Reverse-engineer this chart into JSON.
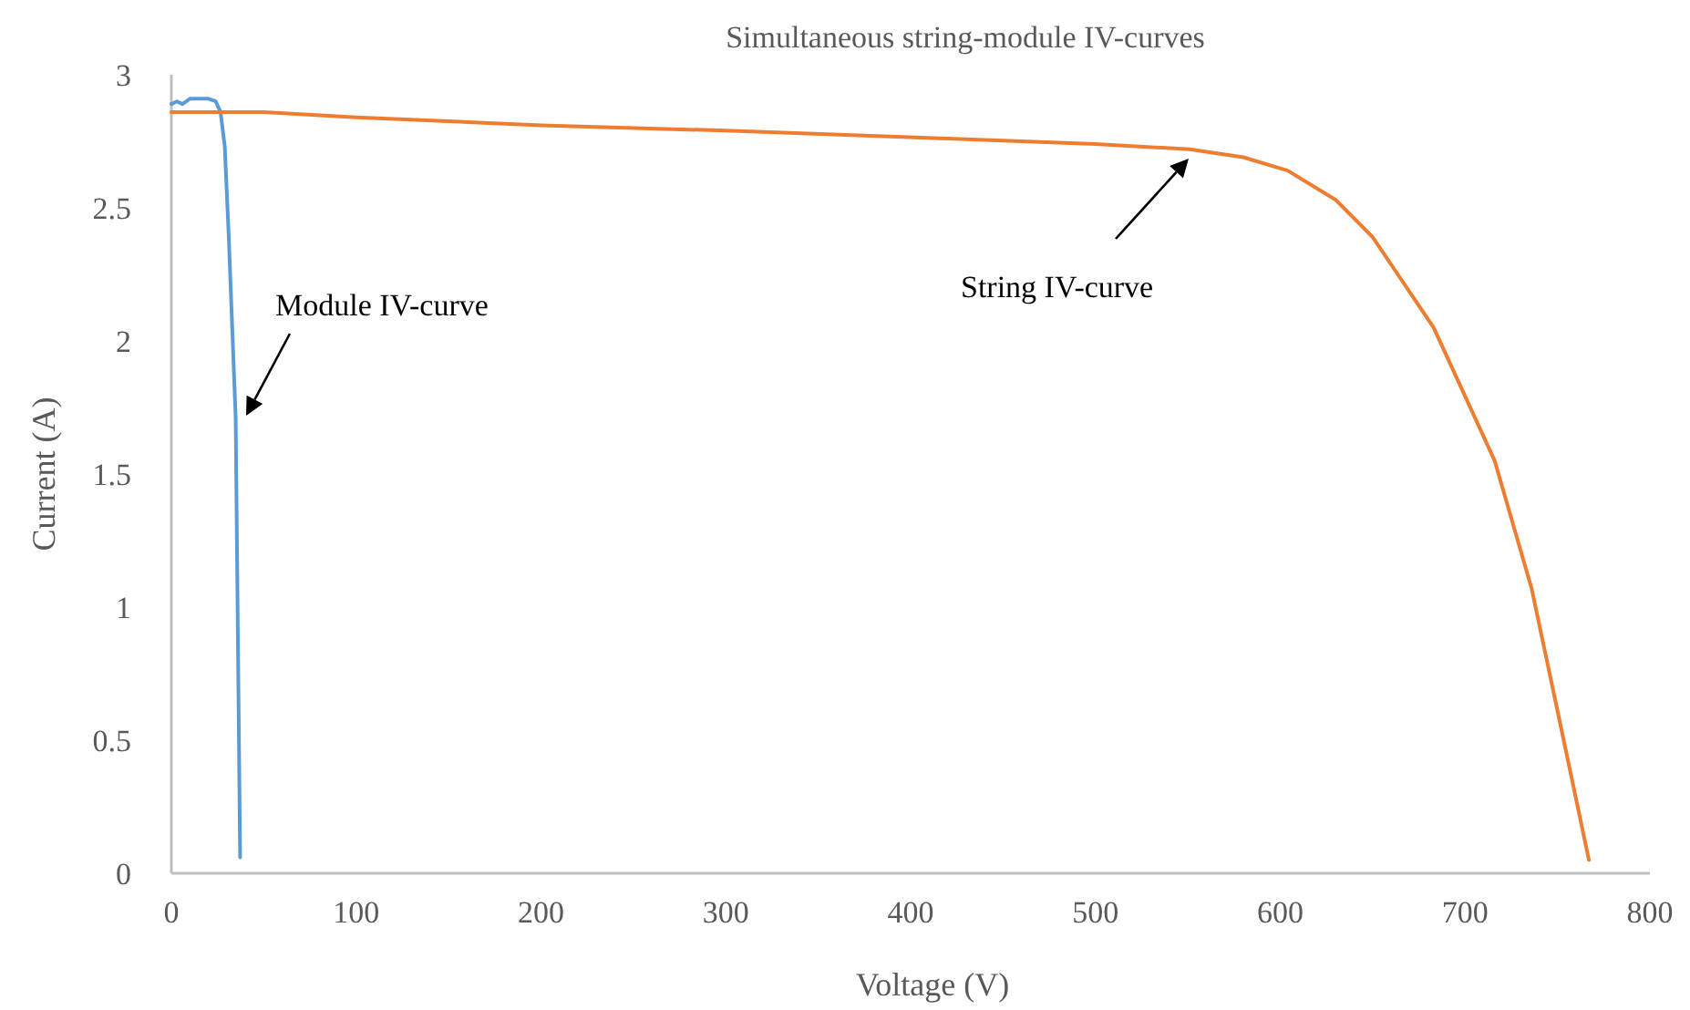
{
  "chart_data": {
    "type": "line",
    "title": "Simultaneous string-module IV-curves",
    "xlabel": "Voltage (V)",
    "ylabel": "Current (A)",
    "xlim": [
      0,
      800
    ],
    "xticks": [
      0,
      100,
      200,
      300,
      400,
      500,
      600,
      700,
      800
    ],
    "ylim": [
      0,
      3
    ],
    "yticks": [
      0,
      0.5,
      1,
      1.5,
      2,
      2.5,
      3
    ],
    "grid": false,
    "marker": "none",
    "line_style": "solid",
    "series": [
      {
        "color": "#5b9bd5",
        "x": [
          0,
          3,
          6,
          10,
          15,
          20,
          24,
          26.6,
          28.9,
          31,
          34.8,
          37.2
        ],
        "values": [
          2.89,
          2.9,
          2.89,
          2.91,
          2.91,
          2.91,
          2.9,
          2.86,
          2.73,
          2.4,
          1.71,
          0.06
        ]
      },
      {
        "color": "#ed7d31",
        "x": [
          0,
          50,
          100,
          200,
          300,
          420,
          500,
          551,
          580,
          604,
          630,
          650,
          683,
          716,
          736,
          748.5,
          767
        ],
        "values": [
          2.86,
          2.86,
          2.84,
          2.81,
          2.79,
          2.76,
          2.74,
          2.72,
          2.69,
          2.64,
          2.53,
          2.39,
          2.05,
          1.55,
          1.07,
          0.66,
          0.05
        ]
      }
    ],
    "annotations": [
      "Module IV-curve",
      "String IV-curve"
    ]
  }
}
